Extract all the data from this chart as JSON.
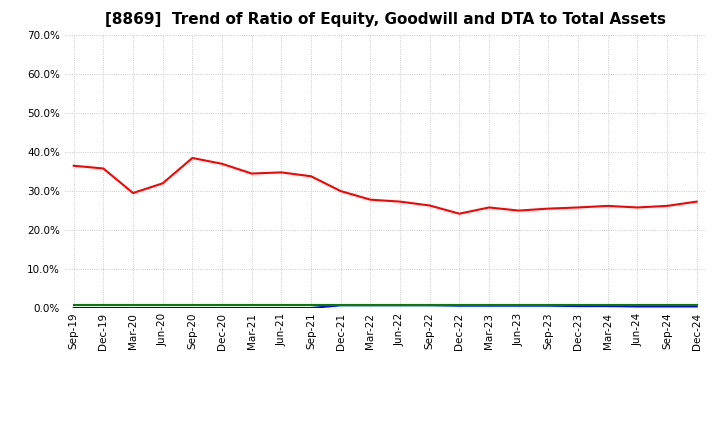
{
  "title": "[8869]  Trend of Ratio of Equity, Goodwill and DTA to Total Assets",
  "x_labels": [
    "Sep-19",
    "Dec-19",
    "Mar-20",
    "Jun-20",
    "Sep-20",
    "Dec-20",
    "Mar-21",
    "Jun-21",
    "Sep-21",
    "Dec-21",
    "Mar-22",
    "Jun-22",
    "Sep-22",
    "Dec-22",
    "Mar-23",
    "Jun-23",
    "Sep-23",
    "Dec-23",
    "Mar-24",
    "Jun-24",
    "Sep-24",
    "Dec-24"
  ],
  "equity": [
    0.365,
    0.358,
    0.295,
    0.32,
    0.385,
    0.37,
    0.345,
    0.348,
    0.338,
    0.3,
    0.278,
    0.273,
    0.263,
    0.242,
    0.258,
    0.25,
    0.255,
    0.258,
    0.262,
    0.258,
    0.262,
    0.273
  ],
  "goodwill": [
    0.0,
    0.0,
    0.0,
    0.0,
    0.0,
    0.0,
    0.0,
    0.0,
    0.0,
    0.007,
    0.007,
    0.007,
    0.007,
    0.006,
    0.006,
    0.006,
    0.006,
    0.005,
    0.005,
    0.004,
    0.004,
    0.004
  ],
  "dta": [
    0.008,
    0.008,
    0.008,
    0.008,
    0.008,
    0.008,
    0.008,
    0.008,
    0.008,
    0.008,
    0.008,
    0.008,
    0.008,
    0.008,
    0.008,
    0.008,
    0.008,
    0.008,
    0.008,
    0.008,
    0.008,
    0.008
  ],
  "equity_color": "#FF0000",
  "goodwill_color": "#0000FF",
  "dta_color": "#008000",
  "ylim": [
    0.0,
    0.7
  ],
  "yticks": [
    0.0,
    0.1,
    0.2,
    0.3,
    0.4,
    0.5,
    0.6,
    0.7
  ],
  "background_color": "#FFFFFF",
  "grid_color": "#BBBBBB",
  "title_fontsize": 11,
  "tick_fontsize": 7.5,
  "legend_fontsize": 9
}
